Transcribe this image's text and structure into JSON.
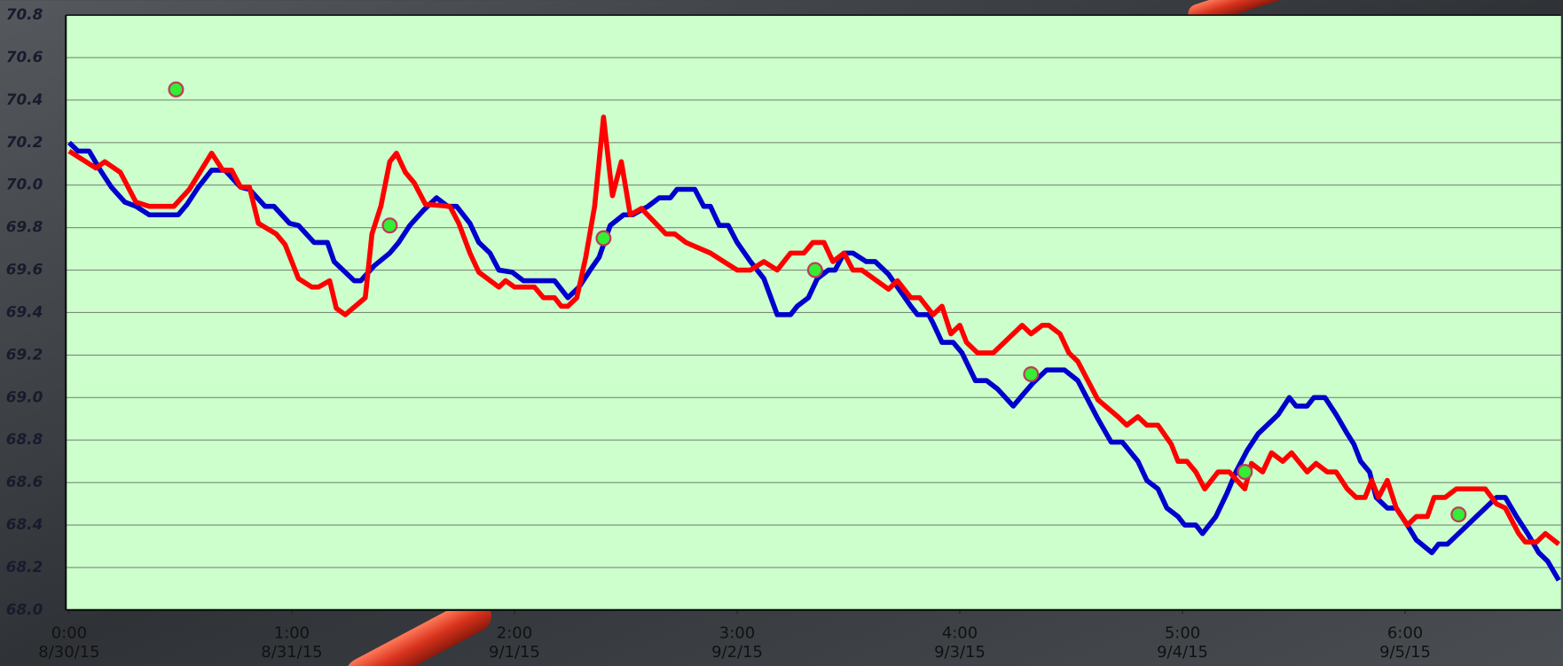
{
  "chart_data": {
    "type": "line",
    "xlim": [
      -0.015,
      6.7
    ],
    "ylim": [
      68.0,
      70.8
    ],
    "yticks": [
      {
        "value": 68.0,
        "label": "68.0"
      },
      68.2,
      68.4,
      68.6,
      68.8,
      {
        "value": 69.0,
        "label": "69.0"
      },
      69.2,
      69.4,
      69.6,
      69.8,
      {
        "value": 70.0,
        "label": "70.0"
      },
      70.2,
      70.4,
      70.6,
      70.8
    ],
    "xticks": [
      {
        "value": 0,
        "label": "0:00\n8/30/15"
      },
      {
        "value": 1,
        "label": "1:00\n8/31/15"
      },
      {
        "value": 2,
        "label": "2:00\n9/1/15"
      },
      {
        "value": 3,
        "label": "3:00\n9/2/15"
      },
      {
        "value": 4,
        "label": "4:00\n9/3/15"
      },
      {
        "value": 5,
        "label": "5:00\n9/4/15"
      },
      {
        "value": 6,
        "label": "6:00\n9/5/15"
      }
    ],
    "grid": true,
    "background": "#ccffcc",
    "series": [
      {
        "color": "#0000cc",
        "style": "line",
        "x": [
          0.0,
          0.04,
          0.09,
          0.14,
          0.19,
          0.25,
          0.3,
          0.36,
          0.49,
          0.53,
          0.58,
          0.64,
          0.7,
          0.77,
          0.81,
          0.88,
          0.92,
          0.99,
          1.03,
          1.1,
          1.16,
          1.19,
          1.28,
          1.31,
          1.37,
          1.44,
          1.48,
          1.53,
          1.59,
          1.65,
          1.7,
          1.74,
          1.8,
          1.84,
          1.89,
          1.93,
          1.99,
          2.04,
          2.18,
          2.24,
          2.29,
          2.34,
          2.38,
          2.43,
          2.49,
          2.53,
          2.6,
          2.65,
          2.7,
          2.73,
          2.81,
          2.85,
          2.88,
          2.92,
          2.96,
          3.0,
          3.06,
          3.12,
          3.18,
          3.24,
          3.27,
          3.32,
          3.36,
          3.41,
          3.44,
          3.48,
          3.52,
          3.58,
          3.62,
          3.68,
          3.72,
          3.78,
          3.81,
          3.86,
          3.88,
          3.92,
          3.97,
          4.01,
          4.07,
          4.12,
          4.17,
          4.24,
          4.28,
          4.33,
          4.39,
          4.47,
          4.53,
          4.57,
          4.62,
          4.68,
          4.73,
          4.8,
          4.84,
          4.89,
          4.93,
          4.98,
          5.01,
          5.06,
          5.09,
          5.15,
          5.2,
          5.24,
          5.29,
          5.34,
          5.4,
          5.43,
          5.48,
          5.51,
          5.56,
          5.59,
          5.64,
          5.69,
          5.74,
          5.77,
          5.8,
          5.84,
          5.87,
          5.92,
          5.96,
          6.01,
          6.05,
          6.12,
          6.15,
          6.19,
          6.25,
          6.34,
          6.41,
          6.45,
          6.5,
          6.55,
          6.6,
          6.64,
          6.69
        ],
        "values": [
          70.2,
          70.16,
          70.16,
          70.07,
          69.99,
          69.92,
          69.9,
          69.86,
          69.86,
          69.91,
          69.99,
          70.07,
          70.07,
          69.99,
          69.98,
          69.9,
          69.9,
          69.82,
          69.81,
          69.73,
          69.73,
          69.64,
          69.55,
          69.55,
          69.62,
          69.68,
          69.73,
          69.81,
          69.88,
          69.94,
          69.9,
          69.9,
          69.82,
          69.73,
          69.68,
          69.6,
          69.59,
          69.55,
          69.55,
          69.47,
          69.52,
          69.6,
          69.66,
          69.81,
          69.86,
          69.86,
          69.9,
          69.94,
          69.94,
          69.98,
          69.98,
          69.9,
          69.9,
          69.81,
          69.81,
          69.73,
          69.64,
          69.56,
          69.39,
          69.39,
          69.43,
          69.47,
          69.56,
          69.6,
          69.6,
          69.68,
          69.68,
          69.64,
          69.64,
          69.58,
          69.52,
          69.43,
          69.39,
          69.39,
          69.35,
          69.26,
          69.26,
          69.21,
          69.08,
          69.08,
          69.04,
          68.96,
          69.01,
          69.07,
          69.13,
          69.13,
          69.08,
          69.0,
          68.9,
          68.79,
          68.79,
          68.7,
          68.61,
          68.57,
          68.48,
          68.44,
          68.4,
          68.4,
          68.36,
          68.44,
          68.55,
          68.65,
          68.75,
          68.83,
          68.89,
          68.92,
          69.0,
          68.96,
          68.96,
          69.0,
          69.0,
          68.92,
          68.83,
          68.78,
          68.7,
          68.65,
          68.53,
          68.48,
          68.48,
          68.4,
          68.33,
          68.27,
          68.31,
          68.31,
          68.37,
          68.46,
          68.53,
          68.53,
          68.44,
          68.36,
          68.27,
          68.23,
          68.14
        ]
      },
      {
        "color": "#ff0000",
        "style": "line",
        "x": [
          0.0,
          0.12,
          0.16,
          0.23,
          0.3,
          0.36,
          0.47,
          0.54,
          0.64,
          0.69,
          0.73,
          0.77,
          0.81,
          0.85,
          0.93,
          0.97,
          1.03,
          1.09,
          1.12,
          1.17,
          1.2,
          1.24,
          1.33,
          1.36,
          1.4,
          1.44,
          1.47,
          1.51,
          1.55,
          1.6,
          1.71,
          1.75,
          1.8,
          1.84,
          1.93,
          1.96,
          2.0,
          2.09,
          2.13,
          2.18,
          2.21,
          2.24,
          2.28,
          2.32,
          2.36,
          2.4,
          2.44,
          2.48,
          2.52,
          2.57,
          2.68,
          2.72,
          2.77,
          2.88,
          2.94,
          3.0,
          3.06,
          3.12,
          3.18,
          3.24,
          3.3,
          3.34,
          3.39,
          3.43,
          3.48,
          3.52,
          3.56,
          3.68,
          3.72,
          3.78,
          3.82,
          3.88,
          3.92,
          3.96,
          4.0,
          4.03,
          4.08,
          4.15,
          4.28,
          4.32,
          4.37,
          4.4,
          4.45,
          4.49,
          4.53,
          4.62,
          4.71,
          4.75,
          4.8,
          4.84,
          4.89,
          4.95,
          4.98,
          5.02,
          5.06,
          5.1,
          5.16,
          5.21,
          5.28,
          5.31,
          5.36,
          5.4,
          5.45,
          5.49,
          5.56,
          5.6,
          5.65,
          5.69,
          5.74,
          5.78,
          5.82,
          5.85,
          5.88,
          5.92,
          5.96,
          6.01,
          6.05,
          6.1,
          6.13,
          6.18,
          6.23,
          6.36,
          6.41,
          6.45,
          6.51,
          6.54,
          6.59,
          6.63,
          6.69
        ],
        "values": [
          70.16,
          70.08,
          70.11,
          70.06,
          69.92,
          69.9,
          69.9,
          69.98,
          70.15,
          70.07,
          70.07,
          69.99,
          69.99,
          69.82,
          69.77,
          69.72,
          69.56,
          69.52,
          69.52,
          69.55,
          69.42,
          69.39,
          69.47,
          69.77,
          69.9,
          70.11,
          70.15,
          70.06,
          70.01,
          69.91,
          69.9,
          69.82,
          69.68,
          69.59,
          69.52,
          69.55,
          69.52,
          69.52,
          69.47,
          69.47,
          69.43,
          69.43,
          69.47,
          69.66,
          69.9,
          70.32,
          69.95,
          70.11,
          69.86,
          69.89,
          69.77,
          69.77,
          69.73,
          69.68,
          69.64,
          69.6,
          69.6,
          69.64,
          69.6,
          69.68,
          69.68,
          69.73,
          69.73,
          69.64,
          69.68,
          69.6,
          69.6,
          69.51,
          69.55,
          69.47,
          69.47,
          69.39,
          69.43,
          69.3,
          69.34,
          69.26,
          69.21,
          69.21,
          69.34,
          69.3,
          69.34,
          69.34,
          69.3,
          69.21,
          69.17,
          68.99,
          68.91,
          68.87,
          68.91,
          68.87,
          68.87,
          68.78,
          68.7,
          68.7,
          68.65,
          68.57,
          68.65,
          68.65,
          68.57,
          68.69,
          68.65,
          68.74,
          68.7,
          68.74,
          68.65,
          68.69,
          68.65,
          68.65,
          68.57,
          68.53,
          68.53,
          68.61,
          68.53,
          68.61,
          68.48,
          68.4,
          68.44,
          68.44,
          68.53,
          68.53,
          68.57,
          68.57,
          68.5,
          68.48,
          68.36,
          68.32,
          68.32,
          68.36,
          68.31
        ]
      },
      {
        "color": "#33ee33",
        "style": "points",
        "x": [
          0.48,
          1.44,
          2.4,
          3.35,
          4.32,
          5.28,
          6.24
        ],
        "values": [
          70.45,
          69.81,
          69.75,
          69.6,
          69.11,
          68.65,
          68.45
        ]
      }
    ]
  }
}
